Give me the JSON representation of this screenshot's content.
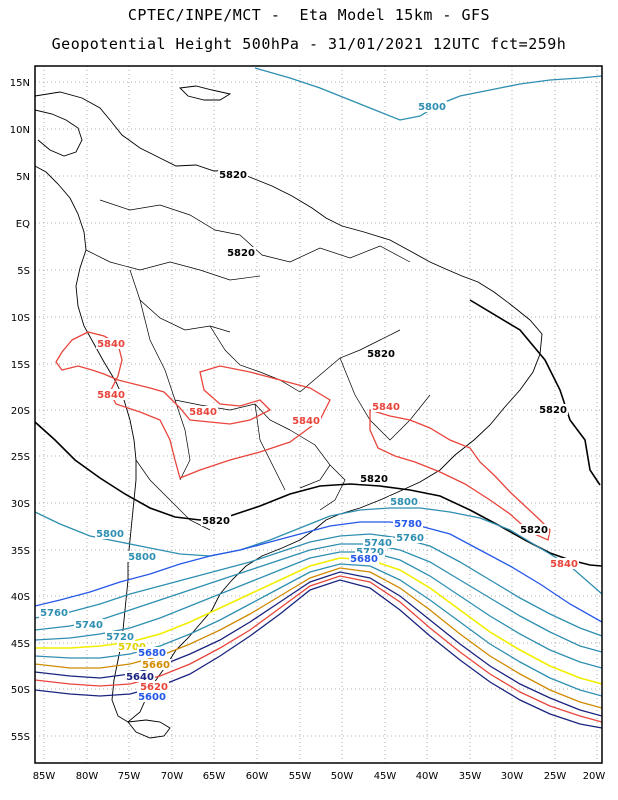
{
  "header": {
    "line1": "CPTEC/INPE/MCT -  Eta Model 15km - GFS",
    "line2": "Geopotential Height 500hPa - 31/01/2021 12UTC fct=259h"
  },
  "axes": {
    "lat_labels": [
      "15N",
      "10N",
      "5N",
      "EQ",
      "5S",
      "10S",
      "15S",
      "20S",
      "25S",
      "30S",
      "35S",
      "40S",
      "45S",
      "50S",
      "55S"
    ],
    "lon_labels": [
      "85W",
      "80W",
      "75W",
      "70W",
      "65W",
      "60W",
      "55W",
      "50W",
      "45W",
      "40W",
      "35W",
      "30W",
      "25W",
      "20W"
    ]
  },
  "contour_labels": [
    {
      "text": "5800",
      "color": "#2f8fb0"
    },
    {
      "text": "5820",
      "color": "#000000"
    },
    {
      "text": "5820",
      "color": "#000000"
    },
    {
      "text": "5840",
      "color": "#e8453c"
    },
    {
      "text": "5840",
      "color": "#e8453c"
    },
    {
      "text": "5840",
      "color": "#e8453c"
    },
    {
      "text": "5840",
      "color": "#e8453c"
    },
    {
      "text": "5820",
      "color": "#000000"
    },
    {
      "text": "5840",
      "color": "#e8453c"
    },
    {
      "text": "5820",
      "color": "#000000"
    },
    {
      "text": "5820",
      "color": "#000000"
    },
    {
      "text": "5820",
      "color": "#000000"
    },
    {
      "text": "5840",
      "color": "#e8453c"
    },
    {
      "text": "5820",
      "color": "#000000"
    },
    {
      "text": "5800",
      "color": "#2f8fb0"
    },
    {
      "text": "5800",
      "color": "#2f8fb0"
    },
    {
      "text": "5800",
      "color": "#2f8fb0"
    },
    {
      "text": "5780",
      "color": "#2457e8"
    },
    {
      "text": "5760",
      "color": "#2f8fb0"
    },
    {
      "text": "5760",
      "color": "#2f8fb0"
    },
    {
      "text": "5740",
      "color": "#2f8fb0"
    },
    {
      "text": "5740",
      "color": "#2f8fb0"
    },
    {
      "text": "5720",
      "color": "#2f8fb0"
    },
    {
      "text": "5720",
      "color": "#2f8fb0"
    },
    {
      "text": "5700",
      "color": "#e0d000"
    },
    {
      "text": "5680",
      "color": "#2457e8"
    },
    {
      "text": "5680",
      "color": "#2457e8"
    },
    {
      "text": "5660",
      "color": "#d08a00"
    },
    {
      "text": "5640",
      "color": "#1a237e"
    },
    {
      "text": "5620",
      "color": "#e8453c"
    },
    {
      "text": "5600",
      "color": "#2457e8"
    }
  ],
  "colors": {
    "c5800": "#2f8fb0",
    "c5820": "#000000",
    "c5840": "#e8453c",
    "c5780": "#2457e8",
    "c5700": "#f2ee00",
    "c5660": "#d08a00",
    "c5640": "#1a237e"
  }
}
